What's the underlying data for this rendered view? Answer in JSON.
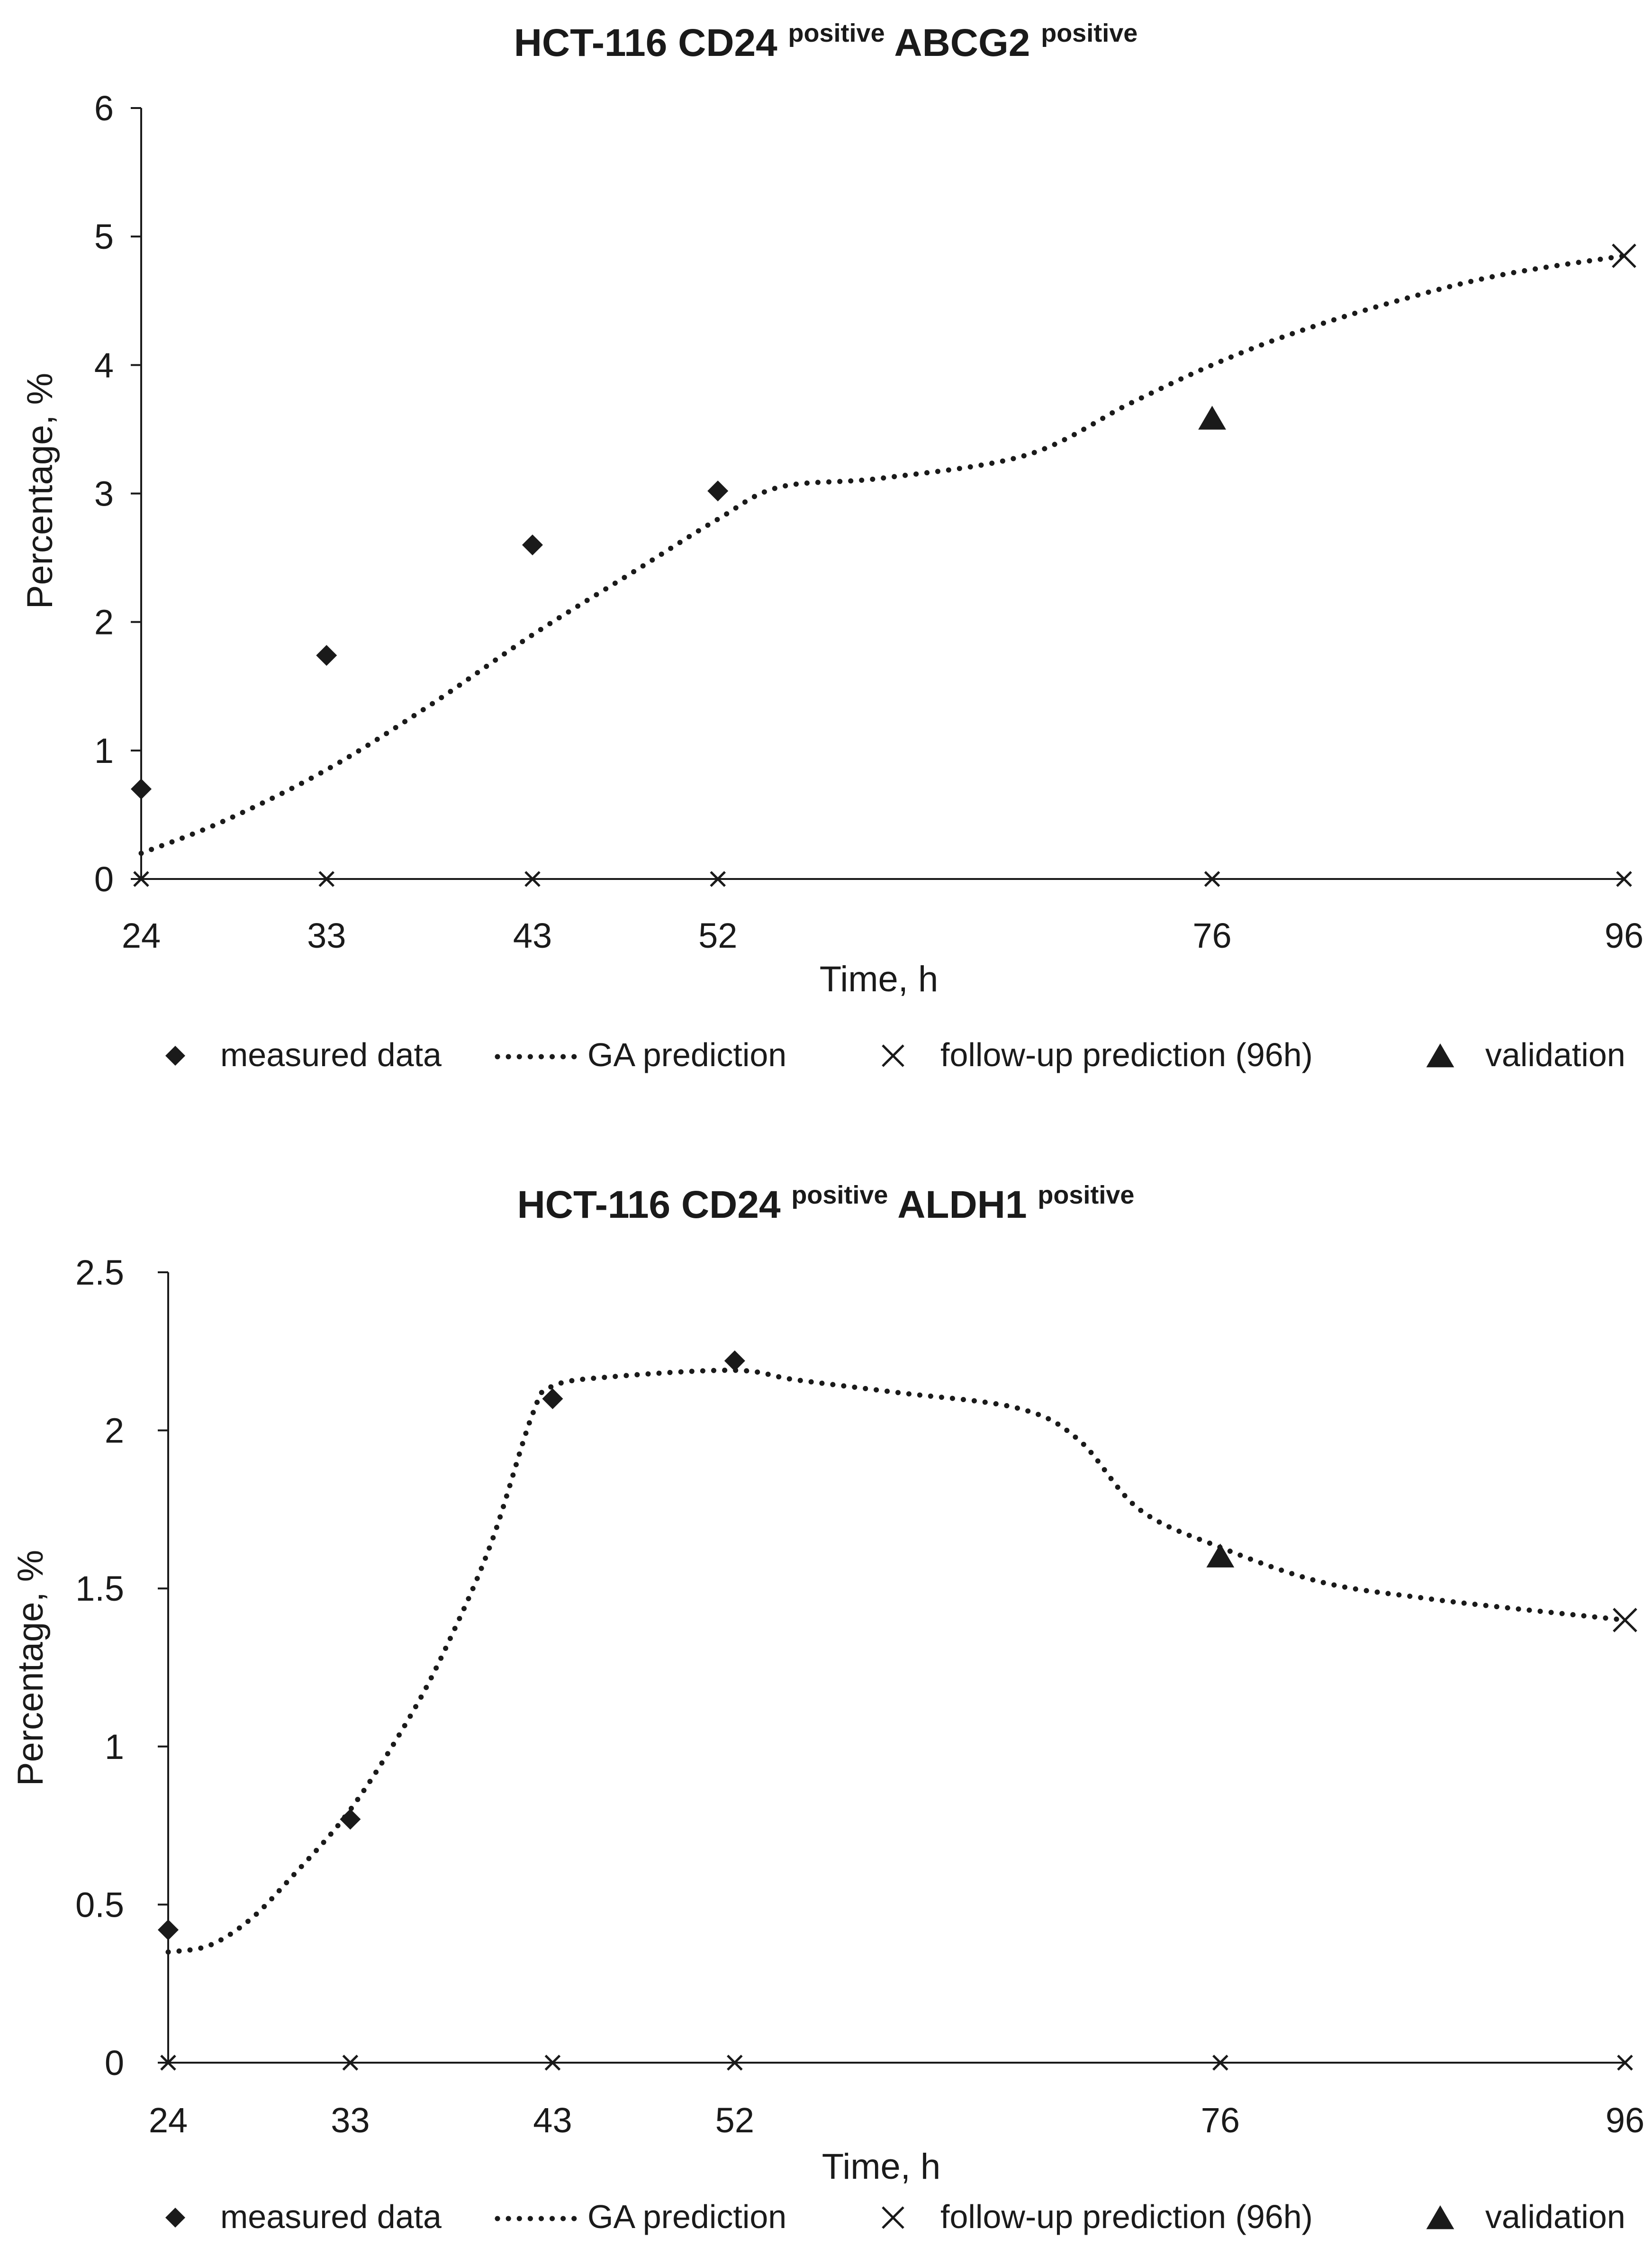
{
  "chart_data": [
    {
      "type": "scatter",
      "title": {
        "prefix": "HCT-116 CD24",
        "sup1": "positive",
        "middle": "ABCG2",
        "sup2": "positive"
      },
      "xlabel": "Time, h",
      "ylabel": "Percentage,  %",
      "xlim": [
        24,
        96
      ],
      "ylim": [
        0,
        6
      ],
      "x_ticks": [
        24,
        33,
        43,
        52,
        76,
        96
      ],
      "x_tick_labels": [
        "24",
        "33",
        "43",
        "52",
        "76",
        "96"
      ],
      "y_ticks": [
        0,
        1,
        2,
        3,
        4,
        5,
        6
      ],
      "y_tick_labels": [
        "0",
        "1",
        "2",
        "3",
        "4",
        "5",
        "6"
      ],
      "series": [
        {
          "name": "measured data",
          "style": "diamond",
          "points": [
            [
              24,
              0.7
            ],
            [
              33,
              1.74
            ],
            [
              43,
              2.6
            ],
            [
              52,
              3.02
            ]
          ]
        },
        {
          "name": "GA prediction",
          "style": "dotted-line",
          "points": [
            [
              24,
              0.2
            ],
            [
              28,
              0.45
            ],
            [
              33,
              0.85
            ],
            [
              38,
              1.35
            ],
            [
              43,
              1.9
            ],
            [
              48,
              2.4
            ],
            [
              52,
              2.8
            ],
            [
              55,
              3.05
            ],
            [
              60,
              3.12
            ],
            [
              67,
              3.3
            ],
            [
              72,
              3.7
            ],
            [
              76,
              4.0
            ],
            [
              80,
              4.25
            ],
            [
              85,
              4.5
            ],
            [
              90,
              4.7
            ],
            [
              96,
              4.85
            ]
          ]
        },
        {
          "name": "follow-up prediction (96h)",
          "style": "x-mark",
          "points": [
            [
              24,
              0
            ],
            [
              33,
              0
            ],
            [
              43,
              0
            ],
            [
              52,
              0
            ],
            [
              76,
              0
            ],
            [
              96,
              0
            ],
            [
              96,
              4.85
            ]
          ]
        },
        {
          "name": "validation",
          "style": "triangle",
          "points": [
            [
              76,
              3.58
            ]
          ]
        }
      ],
      "legend": {
        "placement": "below",
        "items": [
          {
            "label": "measured data",
            "marker": "diamond"
          },
          {
            "label": "GA prediction",
            "marker": "dotted-line"
          },
          {
            "label": "follow-up prediction (96h)",
            "marker": "x-mark"
          },
          {
            "label": "validation",
            "marker": "triangle"
          }
        ]
      }
    },
    {
      "type": "scatter",
      "title": {
        "prefix": "HCT-116 CD24",
        "sup1": "positive",
        "middle": "ALDH1",
        "sup2": "positive"
      },
      "xlabel": "Time, h",
      "ylabel": "Percentage,  %",
      "xlim": [
        24,
        96
      ],
      "ylim": [
        0,
        2.5
      ],
      "x_ticks": [
        24,
        33,
        43,
        52,
        76,
        96
      ],
      "x_tick_labels": [
        "24",
        "33",
        "43",
        "52",
        "76",
        "96"
      ],
      "y_ticks": [
        0,
        0.5,
        1,
        1.5,
        2,
        2.5
      ],
      "y_tick_labels": [
        "0",
        "0.5",
        "1",
        "1.5",
        "2",
        "2.5"
      ],
      "series": [
        {
          "name": "measured data",
          "style": "diamond",
          "points": [
            [
              24,
              0.42
            ],
            [
              33,
              0.77
            ],
            [
              43,
              2.1
            ],
            [
              52,
              2.22
            ]
          ]
        },
        {
          "name": "GA prediction",
          "style": "dotted-line",
          "points": [
            [
              24,
              0.35
            ],
            [
              26,
              0.37
            ],
            [
              28,
              0.45
            ],
            [
              30,
              0.58
            ],
            [
              33,
              0.8
            ],
            [
              36,
              1.1
            ],
            [
              38,
              1.35
            ],
            [
              40,
              1.65
            ],
            [
              42,
              2.05
            ],
            [
              43,
              2.14
            ],
            [
              46,
              2.17
            ],
            [
              52,
              2.19
            ],
            [
              55,
              2.16
            ],
            [
              60,
              2.12
            ],
            [
              66,
              2.07
            ],
            [
              69,
              1.97
            ],
            [
              72,
              1.75
            ],
            [
              76,
              1.63
            ],
            [
              81,
              1.52
            ],
            [
              86,
              1.47
            ],
            [
              90,
              1.44
            ],
            [
              96,
              1.4
            ]
          ]
        },
        {
          "name": "follow-up prediction (96h)",
          "style": "x-mark",
          "points": [
            [
              24,
              0
            ],
            [
              33,
              0
            ],
            [
              43,
              0
            ],
            [
              52,
              0
            ],
            [
              76,
              0
            ],
            [
              96,
              0
            ],
            [
              96,
              1.4
            ]
          ]
        },
        {
          "name": "validation",
          "style": "triangle",
          "points": [
            [
              76,
              1.6
            ]
          ]
        }
      ],
      "legend": {
        "placement": "below",
        "items": [
          {
            "label": "measured data",
            "marker": "diamond"
          },
          {
            "label": "GA prediction",
            "marker": "dotted-line"
          },
          {
            "label": "follow-up prediction (96h)",
            "marker": "x-mark"
          },
          {
            "label": "validation",
            "marker": "triangle"
          }
        ]
      }
    }
  ],
  "style": {
    "ink": "#1a1a1a",
    "background": "#ffffff"
  }
}
